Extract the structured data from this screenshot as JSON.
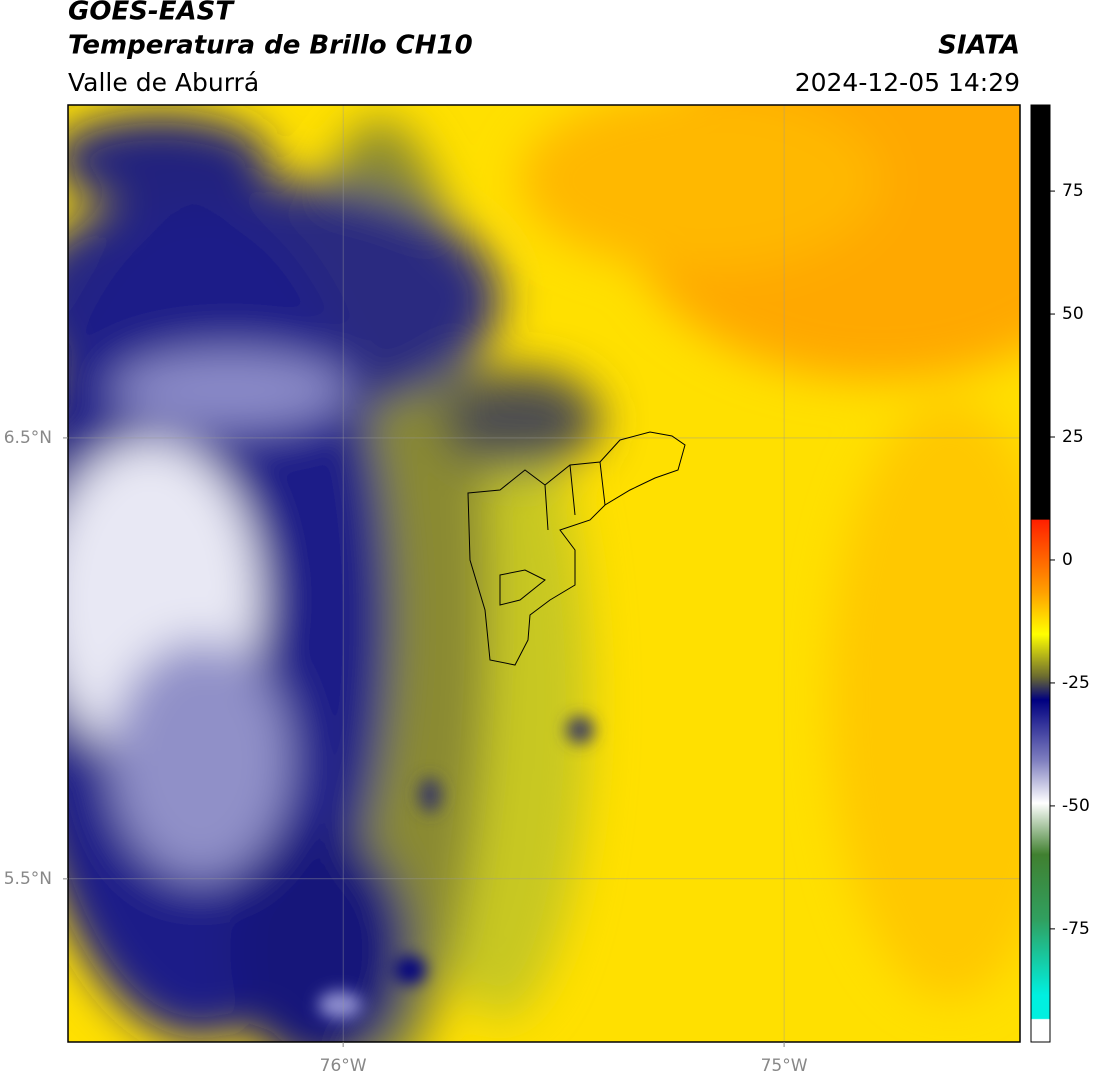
{
  "header": {
    "title": "GOES-EAST",
    "subtitle": "Temperatura de Brillo CH10",
    "source": "SIATA",
    "region": "Valle de Aburrá",
    "datetime": "2024-12-05 14:29"
  },
  "map": {
    "xlim": [
      -76.624,
      -74.465
    ],
    "ylim": [
      5.13,
      7.255
    ],
    "xticks": [
      {
        "value": -76,
        "label": "76°W"
      },
      {
        "value": -75,
        "label": "75°W"
      }
    ],
    "yticks": [
      {
        "value": 6.5,
        "label": "6.5°N"
      },
      {
        "value": 5.5,
        "label": "5.5°N"
      }
    ],
    "grid": true
  },
  "colorbar": {
    "range": [
      -98,
      92.5
    ],
    "ticks": [
      75,
      50,
      25,
      0,
      -25,
      -50,
      -75
    ]
  }
}
